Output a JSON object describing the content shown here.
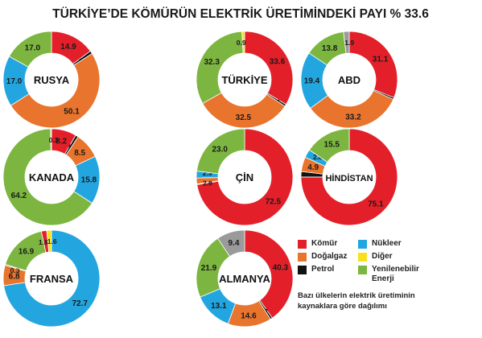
{
  "title": "TÜRKİYE’DE KÖMÜRÜN ELEKTRİK ÜRETİMİNDEKİ PAYI % 33.6",
  "legend": [
    {
      "key": "komur",
      "label": "Kömür",
      "color": "#e3202a"
    },
    {
      "key": "nukleer",
      "label": "Nükleer",
      "color": "#23a6e0"
    },
    {
      "key": "dogalgaz",
      "label": "Doğalgaz",
      "color": "#e8742d"
    },
    {
      "key": "diger",
      "label": "Diğer",
      "color": "#f7e11c"
    },
    {
      "key": "petrol",
      "label": "Petrol",
      "color": "#111111"
    },
    {
      "key": "yenilenebilir",
      "label": "Yenilenebilir Enerji",
      "color": "#7cb640"
    },
    {
      "key": "diger_gri",
      "label": "",
      "color": "#9a9a9a"
    }
  ],
  "note": "Bazı ülkelerin elektrik üretiminin kaynaklara göre dağılımı",
  "chart_data": [
    {
      "type": "pie",
      "name": "RUSYA",
      "slices": [
        {
          "source": "komur",
          "value": 14.9,
          "label": "14.9"
        },
        {
          "source": "petrol",
          "value": 1.0,
          "label": "1.0"
        },
        {
          "source": "dogalgaz",
          "value": 50.1,
          "label": "50.1"
        },
        {
          "source": "nukleer",
          "value": 17.0,
          "label": "17.0"
        },
        {
          "source": "yenilenebilir",
          "value": 17.0,
          "label": "17.0"
        }
      ]
    },
    {
      "type": "pie",
      "name": "TÜRKİYE",
      "slices": [
        {
          "source": "komur",
          "value": 33.6,
          "label": "33.6"
        },
        {
          "source": "petrol",
          "value": 0.7,
          "label": "0.7"
        },
        {
          "source": "dogalgaz",
          "value": 32.5,
          "label": "32.5"
        },
        {
          "source": "yenilenebilir",
          "value": 32.3,
          "label": "32.3"
        },
        {
          "source": "diger",
          "value": 0.9,
          "label": "0.9"
        }
      ]
    },
    {
      "type": "pie",
      "name": "ABD",
      "slices": [
        {
          "source": "komur",
          "value": 31.1,
          "label": "31.1"
        },
        {
          "source": "petrol",
          "value": 0.6,
          "label": "0.6"
        },
        {
          "source": "dogalgaz",
          "value": 33.2,
          "label": "33.2"
        },
        {
          "source": "nukleer",
          "value": 19.4,
          "label": "19.4"
        },
        {
          "source": "yenilenebilir",
          "value": 13.8,
          "label": "13.8"
        },
        {
          "source": "diger_gri",
          "value": 1.9,
          "label": "1.9"
        }
      ]
    },
    {
      "type": "pie",
      "name": "KANADA",
      "slices": [
        {
          "source": "komur",
          "value": 8.2,
          "label": "8.2"
        },
        {
          "source": "petrol",
          "value": 0.9,
          "label": "0.9"
        },
        {
          "source": "dogalgaz",
          "value": 8.5,
          "label": "8.5"
        },
        {
          "source": "nukleer",
          "value": 15.8,
          "label": "15.8"
        },
        {
          "source": "yenilenebilir",
          "value": 64.2,
          "label": "64.2"
        },
        {
          "source": "diger",
          "value": 0.3,
          "label": "0.3"
        }
      ]
    },
    {
      "type": "pie",
      "name": "ÇİN",
      "slices": [
        {
          "source": "komur",
          "value": 72.5,
          "label": "72.5"
        },
        {
          "source": "petrol",
          "value": 0.2,
          "label": "0.2"
        },
        {
          "source": "dogalgaz",
          "value": 2.0,
          "label": "2.0"
        },
        {
          "source": "nukleer",
          "value": 2.3,
          "label": "2.3"
        },
        {
          "source": "yenilenebilir",
          "value": 23.0,
          "label": "23.0"
        }
      ]
    },
    {
      "type": "pie",
      "name": "HİNDİSTAN",
      "slices": [
        {
          "source": "komur",
          "value": 75.1,
          "label": "75.1"
        },
        {
          "source": "petrol",
          "value": 1.8,
          "label": "1.8"
        },
        {
          "source": "dogalgaz",
          "value": 4.9,
          "label": "4.9"
        },
        {
          "source": "nukleer",
          "value": 2.8,
          "label": "2.8"
        },
        {
          "source": "yenilenebilir",
          "value": 15.5,
          "label": "15.5"
        }
      ]
    },
    {
      "type": "pie",
      "name": "FRANSA",
      "slices": [
        {
          "source": "nukleer",
          "value": 72.7,
          "label": "72.7"
        },
        {
          "source": "dogalgaz",
          "value": 6.8,
          "label": "6.8"
        },
        {
          "source": "petrol",
          "value": 0.3,
          "label": "0.3"
        },
        {
          "source": "yenilenebilir",
          "value": 16.9,
          "label": "16.9"
        },
        {
          "source": "komur",
          "value": 1.8,
          "label": "1.8"
        },
        {
          "source": "diger",
          "value": 1.6,
          "label": "1.6"
        }
      ]
    },
    {
      "type": "pie",
      "name": "ALMANYA",
      "slices": [
        {
          "source": "komur",
          "value": 40.3,
          "label": "40.3"
        },
        {
          "source": "petrol",
          "value": 0.7,
          "label": "0.7"
        },
        {
          "source": "dogalgaz",
          "value": 14.6,
          "label": "14.6"
        },
        {
          "source": "nukleer",
          "value": 13.1,
          "label": "13.1"
        },
        {
          "source": "yenilenebilir",
          "value": 21.9,
          "label": "21.9"
        },
        {
          "source": "diger_gri",
          "value": 9.4,
          "label": "9.4"
        }
      ]
    }
  ]
}
